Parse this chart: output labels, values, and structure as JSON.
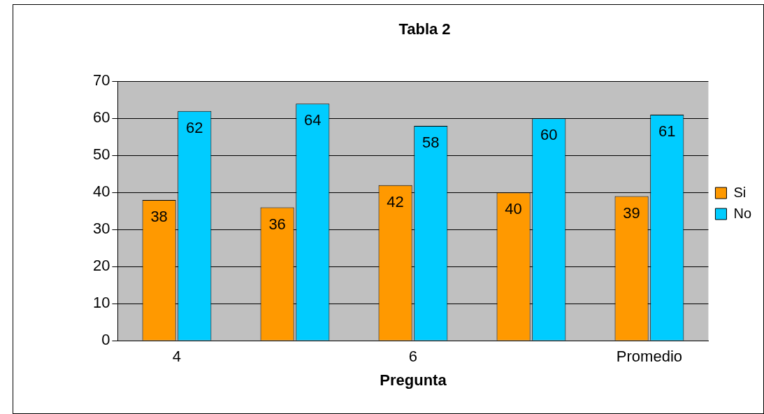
{
  "chart_data": {
    "type": "bar",
    "title": "Tabla 2",
    "xlabel": "Pregunta",
    "categories": [
      "4",
      null,
      "6",
      null,
      "Promedio"
    ],
    "series": [
      {
        "name": "Si",
        "color": "#ff9900",
        "values": [
          38,
          36,
          42,
          40,
          39
        ]
      },
      {
        "name": "No",
        "color": "#00ccff",
        "values": [
          62,
          64,
          58,
          60,
          61
        ]
      }
    ],
    "ylim": [
      0,
      70
    ],
    "yticks": [
      0,
      10,
      20,
      30,
      40,
      50,
      60,
      70
    ],
    "grid": "y",
    "legend": "right",
    "data_labels": true
  }
}
